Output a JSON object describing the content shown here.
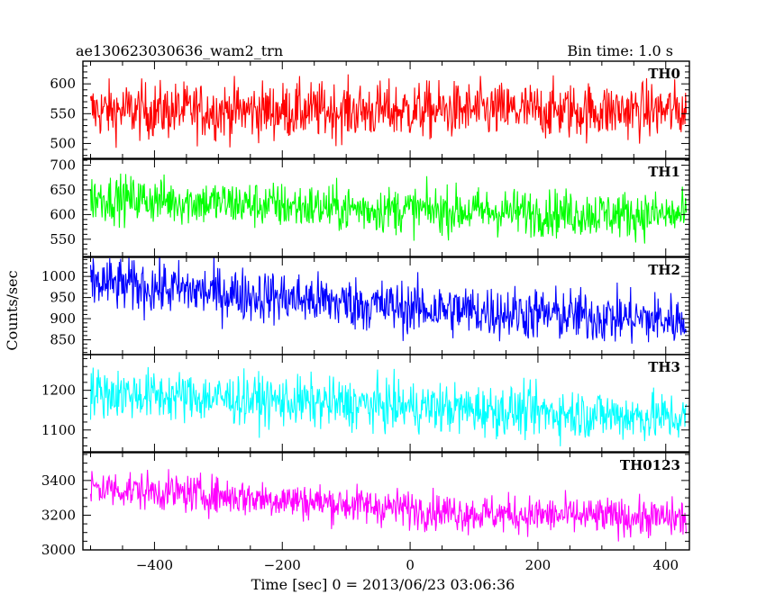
{
  "chart_data": {
    "type": "line",
    "title": "ae130623030636_wam2_trn",
    "subtitle": "Bin time: 1.0 s",
    "xlabel": "Time [sec] 0 = 2013/06/23 03:06:36",
    "ylabel": "Counts/sec",
    "xlim": [
      -512,
      437
    ],
    "xticks": [
      -400,
      -200,
      0,
      200,
      400
    ],
    "x_minor_step": 50,
    "grid": false,
    "panels": [
      {
        "name": "TH0",
        "color": "#ff0000",
        "ylim": [
          475,
          638
        ],
        "yticks": [
          500,
          550,
          600
        ],
        "y_minor_step": 10,
        "data_xrange": [
          -500,
          432
        ],
        "trend": [
          [
            -500,
            555
          ],
          [
            432,
            555
          ]
        ],
        "noise_amplitude": 24,
        "noise_max": 70
      },
      {
        "name": "TH1",
        "color": "#00ff00",
        "ylim": [
          515,
          712
        ],
        "yticks": [
          550,
          600,
          650,
          700
        ],
        "y_minor_step": 10,
        "data_xrange": [
          -500,
          432
        ],
        "trend": [
          [
            -500,
            635
          ],
          [
            -100,
            612
          ],
          [
            432,
            598
          ]
        ],
        "noise_amplitude": 24,
        "noise_max": 70
      },
      {
        "name": "TH2",
        "color": "#0000ff",
        "ylim": [
          815,
          1045
        ],
        "yticks": [
          850,
          900,
          950,
          1000
        ],
        "y_minor_step": 10,
        "data_xrange": [
          -500,
          432
        ],
        "trend": [
          [
            -500,
            985
          ],
          [
            -200,
            950
          ],
          [
            0,
            925
          ],
          [
            432,
            895
          ]
        ],
        "noise_amplitude": 32,
        "noise_max": 90
      },
      {
        "name": "TH3",
        "color": "#00ffff",
        "ylim": [
          1045,
          1290
        ],
        "yticks": [
          1100,
          1200
        ],
        "y_minor_step": 20,
        "data_xrange": [
          -500,
          432
        ],
        "trend": [
          [
            -500,
            1195
          ],
          [
            -100,
            1165
          ],
          [
            432,
            1130
          ]
        ],
        "noise_amplitude": 32,
        "noise_max": 95
      },
      {
        "name": "TH0123",
        "color": "#ff00ff",
        "ylim": [
          3000,
          3560
        ],
        "yticks": [
          3000,
          3200,
          3400
        ],
        "y_minor_step": 50,
        "data_xrange": [
          -500,
          432
        ],
        "trend": [
          [
            -500,
            3360
          ],
          [
            -200,
            3290
          ],
          [
            100,
            3210
          ],
          [
            432,
            3180
          ]
        ],
        "noise_amplitude": 55,
        "noise_max": 170
      }
    ]
  }
}
